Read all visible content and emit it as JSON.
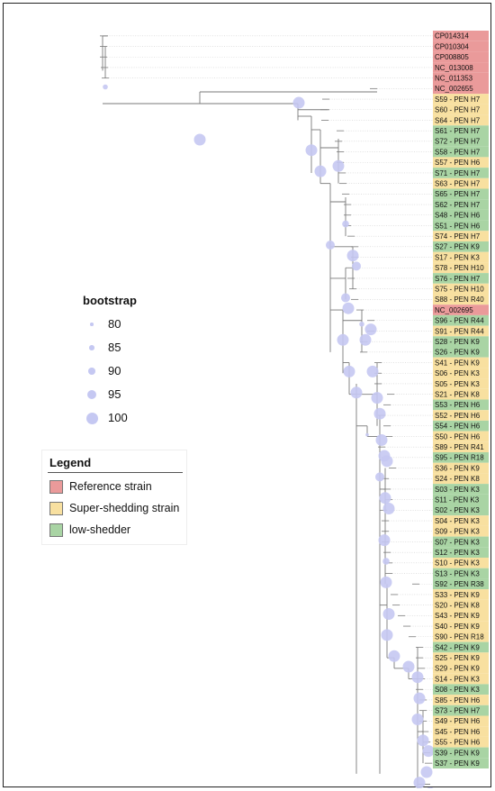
{
  "colors": {
    "reference": "#ea9a9a",
    "super": "#f8e0a0",
    "low": "#a9d4a4",
    "node": "#c5c8f2",
    "branch": "#7a7a7a"
  },
  "bootstrap": {
    "title": "bootstrap",
    "levels": [
      {
        "label": "80",
        "value": 80
      },
      {
        "label": "85",
        "value": 85
      },
      {
        "label": "90",
        "value": 90
      },
      {
        "label": "95",
        "value": 95
      },
      {
        "label": "100",
        "value": 100
      }
    ]
  },
  "legend": {
    "title": "Legend",
    "items": [
      {
        "label": "Reference strain",
        "category": "reference"
      },
      {
        "label": "Super-shedding strain",
        "category": "super"
      },
      {
        "label": "low-shedder",
        "category": "low"
      }
    ]
  },
  "tips": [
    {
      "label": "CP014314",
      "category": "reference"
    },
    {
      "label": "CP010304",
      "category": "reference"
    },
    {
      "label": "CP008805",
      "category": "reference"
    },
    {
      "label": "NC_013008",
      "category": "reference"
    },
    {
      "label": "NC_011353",
      "category": "reference"
    },
    {
      "label": "NC_002655",
      "category": "reference"
    },
    {
      "label": "S59 - PEN H7",
      "category": "super"
    },
    {
      "label": "S60 - PEN H7",
      "category": "super"
    },
    {
      "label": "S64 - PEN H7",
      "category": "super"
    },
    {
      "label": "S61 - PEN H7",
      "category": "low"
    },
    {
      "label": "S72 - PEN H7",
      "category": "low"
    },
    {
      "label": "S58 - PEN H7",
      "category": "low"
    },
    {
      "label": "S57 - PEN H6",
      "category": "super"
    },
    {
      "label": "S71 - PEN H7",
      "category": "low"
    },
    {
      "label": "S63 - PEN H7",
      "category": "super"
    },
    {
      "label": "S65 - PEN H7",
      "category": "low"
    },
    {
      "label": "S62 - PEN H7",
      "category": "low"
    },
    {
      "label": "S48 - PEN H6",
      "category": "low"
    },
    {
      "label": "S51 - PEN H6",
      "category": "low"
    },
    {
      "label": "S74 - PEN H7",
      "category": "super"
    },
    {
      "label": "S27 - PEN K9",
      "category": "low"
    },
    {
      "label": "S17 - PEN K3",
      "category": "super"
    },
    {
      "label": "S78 - PEN H10",
      "category": "super"
    },
    {
      "label": "S76 - PEN H7",
      "category": "low"
    },
    {
      "label": "S75 - PEN H10",
      "category": "super"
    },
    {
      "label": "S88 - PEN R40",
      "category": "super"
    },
    {
      "label": "NC_002695",
      "category": "reference"
    },
    {
      "label": "S96 - PEN R44",
      "category": "low"
    },
    {
      "label": "S91 - PEN R44",
      "category": "super"
    },
    {
      "label": "S28 - PEN K9",
      "category": "low"
    },
    {
      "label": "S26 - PEN K9",
      "category": "low"
    },
    {
      "label": "S41 - PEN K9",
      "category": "super"
    },
    {
      "label": "S06 - PEN K3",
      "category": "super"
    },
    {
      "label": "S05 - PEN K3",
      "category": "super"
    },
    {
      "label": "S21 - PEN K8",
      "category": "super"
    },
    {
      "label": "S53 - PEN H6",
      "category": "low"
    },
    {
      "label": "S52 - PEN H6",
      "category": "super"
    },
    {
      "label": "S54 - PEN H6",
      "category": "low"
    },
    {
      "label": "S50 - PEN H6",
      "category": "super"
    },
    {
      "label": "S89 - PEN R41",
      "category": "super"
    },
    {
      "label": "S95 - PEN R18",
      "category": "low"
    },
    {
      "label": "S36 - PEN K9",
      "category": "super"
    },
    {
      "label": "S24 - PEN K8",
      "category": "super"
    },
    {
      "label": "S03 - PEN K3",
      "category": "low"
    },
    {
      "label": "S11 - PEN K3",
      "category": "low"
    },
    {
      "label": "S02 - PEN K3",
      "category": "low"
    },
    {
      "label": "S04 - PEN K3",
      "category": "super"
    },
    {
      "label": "S09 - PEN K3",
      "category": "super"
    },
    {
      "label": "S07 - PEN K3",
      "category": "low"
    },
    {
      "label": "S12 - PEN K3",
      "category": "low"
    },
    {
      "label": "S10 - PEN K3",
      "category": "super"
    },
    {
      "label": "S13 - PEN K3",
      "category": "low"
    },
    {
      "label": "S92 - PEN R38",
      "category": "low"
    },
    {
      "label": "S33 - PEN K9",
      "category": "super"
    },
    {
      "label": "S20 - PEN K8",
      "category": "super"
    },
    {
      "label": "S43 - PEN K9",
      "category": "super"
    },
    {
      "label": "S40 - PEN K9",
      "category": "super"
    },
    {
      "label": "S90 - PEN R18",
      "category": "super"
    },
    {
      "label": "S42 - PEN K9",
      "category": "low"
    },
    {
      "label": "S25 - PEN K9",
      "category": "super"
    },
    {
      "label": "S29 - PEN K9",
      "category": "super"
    },
    {
      "label": "S14 - PEN K3",
      "category": "super"
    },
    {
      "label": "S08 - PEN K3",
      "category": "low"
    },
    {
      "label": "S85 - PEN H6",
      "category": "super"
    },
    {
      "label": "S73 - PEN H7",
      "category": "low"
    },
    {
      "label": "S49 - PEN H6",
      "category": "super"
    },
    {
      "label": "S45 - PEN H6",
      "category": "super"
    },
    {
      "label": "S55 - PEN H6",
      "category": "super"
    },
    {
      "label": "S39 - PEN K9",
      "category": "low"
    },
    {
      "label": "S37 - PEN K9",
      "category": "low"
    }
  ],
  "internal_nodes": [
    {
      "x": 113,
      "tip": 5.0,
      "bootstrap": 85
    },
    {
      "x": 218,
      "tip": 10,
      "bootstrap": 100
    },
    {
      "x": 328,
      "tip": 6.5,
      "bootstrap": 100
    },
    {
      "x": 342,
      "tip": 11,
      "bootstrap": 100
    },
    {
      "x": 352,
      "tip": 13,
      "bootstrap": 100
    },
    {
      "x": 372,
      "tip": 12.5,
      "bootstrap": 100
    },
    {
      "x": 363,
      "tip": 20,
      "bootstrap": 95
    },
    {
      "x": 380,
      "tip": 18,
      "bootstrap": 90
    },
    {
      "x": 388,
      "tip": 21,
      "bootstrap": 100
    },
    {
      "x": 392,
      "tip": 22,
      "bootstrap": 95
    },
    {
      "x": 380,
      "tip": 25,
      "bootstrap": 95
    },
    {
      "x": 383,
      "tip": 26,
      "bootstrap": 100
    },
    {
      "x": 377,
      "tip": 29,
      "bootstrap": 100
    },
    {
      "x": 384,
      "tip": 32,
      "bootstrap": 100
    },
    {
      "x": 398,
      "tip": 27.5,
      "bootstrap": 85
    },
    {
      "x": 408,
      "tip": 28,
      "bootstrap": 100
    },
    {
      "x": 402,
      "tip": 29,
      "bootstrap": 100
    },
    {
      "x": 410,
      "tip": 32,
      "bootstrap": 100
    },
    {
      "x": 392,
      "tip": 34,
      "bootstrap": 100
    },
    {
      "x": 415,
      "tip": 34.5,
      "bootstrap": 100
    },
    {
      "x": 418,
      "tip": 36,
      "bootstrap": 100
    },
    {
      "x": 404,
      "tip": 38,
      "bootstrap": 80
    },
    {
      "x": 420,
      "tip": 38.5,
      "bootstrap": 100
    },
    {
      "x": 423,
      "tip": 40,
      "bootstrap": 100
    },
    {
      "x": 426,
      "tip": 40.5,
      "bootstrap": 100
    },
    {
      "x": 418,
      "tip": 42,
      "bootstrap": 95
    },
    {
      "x": 424,
      "tip": 44,
      "bootstrap": 100
    },
    {
      "x": 428,
      "tip": 45,
      "bootstrap": 100
    },
    {
      "x": 423,
      "tip": 48,
      "bootstrap": 100
    },
    {
      "x": 425,
      "tip": 50,
      "bootstrap": 90
    },
    {
      "x": 425,
      "tip": 52,
      "bootstrap": 100
    },
    {
      "x": 428,
      "tip": 55,
      "bootstrap": 100
    },
    {
      "x": 426,
      "tip": 57,
      "bootstrap": 100
    },
    {
      "x": 434,
      "tip": 59,
      "bootstrap": 100
    },
    {
      "x": 450,
      "tip": 60,
      "bootstrap": 100
    },
    {
      "x": 460,
      "tip": 61,
      "bootstrap": 100
    },
    {
      "x": 462,
      "tip": 63,
      "bootstrap": 100
    },
    {
      "x": 460,
      "tip": 65,
      "bootstrap": 100
    },
    {
      "x": 466,
      "tip": 67,
      "bootstrap": 100
    },
    {
      "x": 472,
      "tip": 68,
      "bootstrap": 100
    },
    {
      "x": 470,
      "tip": 70,
      "bootstrap": 100
    },
    {
      "x": 462,
      "tip": 71,
      "bootstrap": 100
    },
    {
      "x": 474,
      "tip": 72,
      "bootstrap": 100
    }
  ]
}
